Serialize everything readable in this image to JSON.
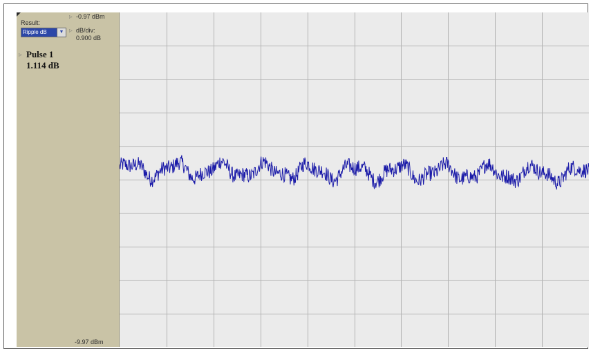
{
  "panel": {
    "result_label": "Result:",
    "result_value": "Ripple dB",
    "top_reference": "-0.97 dBm",
    "div_label": "dB/div:",
    "div_value": "0.900 dB",
    "measurement_name": "Pulse 1",
    "measurement_value": "1.114 dB",
    "bottom_reference": "-9.97 dBm"
  },
  "chart_data": {
    "type": "line",
    "ylim": [
      -9.97,
      -0.97
    ],
    "y_per_division": 0.9,
    "vertical_divisions": 10,
    "horizontal_divisions": 10,
    "grid": true,
    "series": [
      {
        "color": "#1a1aa8",
        "baseline_dbm": -5.2,
        "ripple_pp_db": 1.114
      }
    ]
  },
  "colors": {
    "panel_bg": "#c9c3a6",
    "plot_bg": "#ebebeb",
    "grid": "#b4b4b4",
    "trace": "#1a1aa8",
    "selection": "#2c47a8"
  }
}
